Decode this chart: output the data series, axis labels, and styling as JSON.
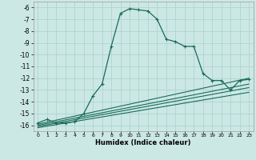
{
  "xlabel": "Humidex (Indice chaleur)",
  "xlim": [
    -0.5,
    23.5
  ],
  "ylim": [
    -16.5,
    -5.5
  ],
  "yticks": [
    -6,
    -7,
    -8,
    -9,
    -10,
    -11,
    -12,
    -13,
    -14,
    -15,
    -16
  ],
  "xticks": [
    0,
    1,
    2,
    3,
    4,
    5,
    6,
    7,
    8,
    9,
    10,
    11,
    12,
    13,
    14,
    15,
    16,
    17,
    18,
    19,
    20,
    21,
    22,
    23
  ],
  "bg_color": "#cce8e4",
  "grid_color": "#aed4cf",
  "line_color": "#1a6b5a",
  "curve1_x": [
    0,
    1,
    2,
    3,
    4,
    5,
    6,
    7,
    8,
    9,
    10,
    11,
    12,
    13,
    14,
    15,
    16,
    17,
    18,
    19,
    20,
    21,
    22,
    23
  ],
  "curve1_y": [
    -15.8,
    -15.5,
    -15.8,
    -15.8,
    -15.7,
    -15.0,
    -13.5,
    -12.5,
    -9.3,
    -6.5,
    -6.1,
    -6.2,
    -6.3,
    -7.0,
    -8.7,
    -8.9,
    -9.3,
    -9.3,
    -11.6,
    -12.2,
    -12.2,
    -13.0,
    -12.2,
    -12.1
  ],
  "line2_x": [
    0,
    23
  ],
  "line2_y": [
    -15.9,
    -12.0
  ],
  "line3_x": [
    0,
    23
  ],
  "line3_y": [
    -16.0,
    -12.5
  ],
  "line4_x": [
    0,
    23
  ],
  "line4_y": [
    -16.1,
    -12.8
  ],
  "line5_x": [
    0,
    23
  ],
  "line5_y": [
    -16.2,
    -13.2
  ]
}
